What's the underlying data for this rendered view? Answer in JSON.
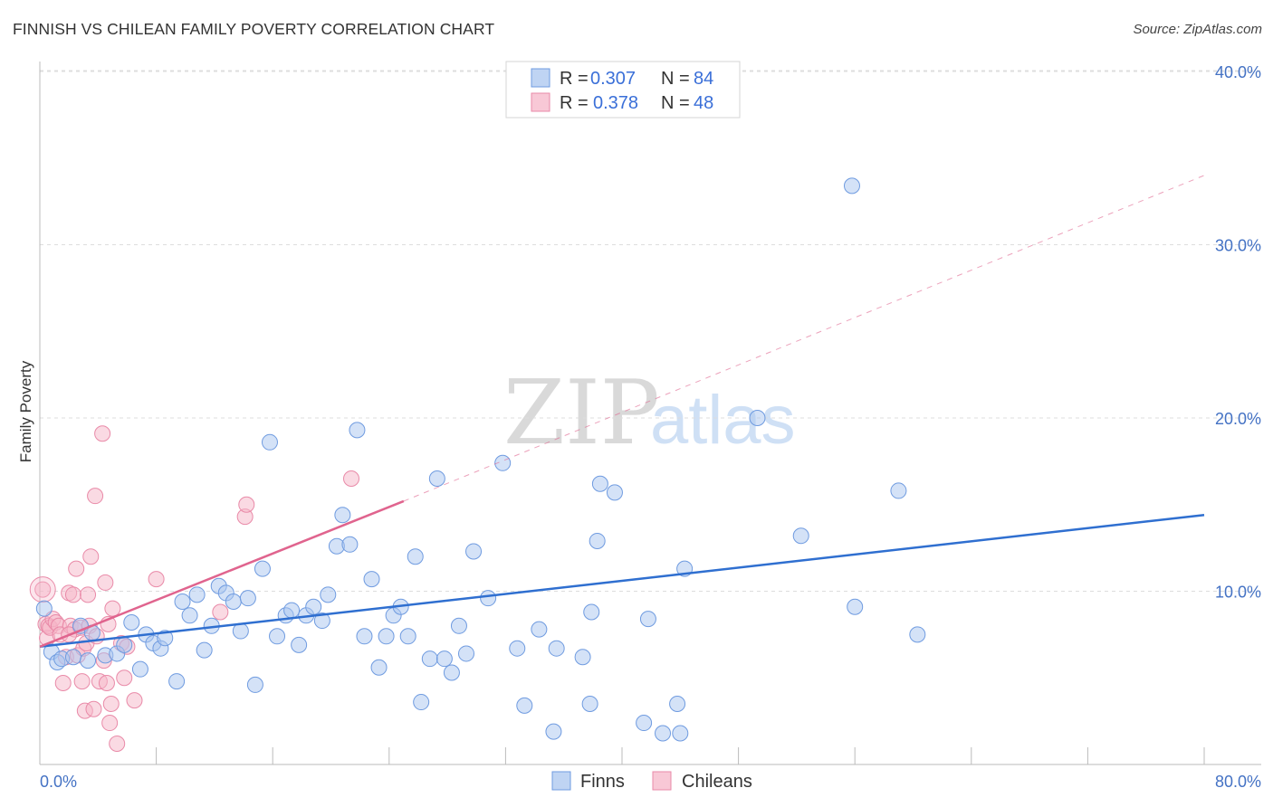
{
  "title": "FINNISH VS CHILEAN FAMILY POVERTY CORRELATION CHART",
  "source": "Source: ZipAtlas.com",
  "watermark": {
    "zip": "ZIP",
    "atlas": "atlas"
  },
  "colors": {
    "finns": "#a9c5ef",
    "finns_stroke": "#6f9be0",
    "finns_line": "#2f6fd0",
    "chileans": "#f5b5c8",
    "chileans_stroke": "#e98aa8",
    "chileans_line": "#e0648e",
    "tick_text": "#4472c4",
    "grid": "#dddddd"
  },
  "legend_top": {
    "rows": [
      {
        "r_label": "R =",
        "r_value": "0.307",
        "n_label": "N =",
        "n_value": "84"
      },
      {
        "r_label": "R =",
        "r_value": "0.378",
        "n_label": "N =",
        "n_value": "48"
      }
    ]
  },
  "chart_data": {
    "type": "scatter",
    "title": "FINNISH VS CHILEAN FAMILY POVERTY CORRELATION CHART",
    "xlabel": "",
    "ylabel": "Family Poverty",
    "xlim": [
      0,
      80
    ],
    "ylim": [
      0,
      42
    ],
    "x_tick_labels": [
      "0.0%",
      "80.0%"
    ],
    "y_ticks": [
      10,
      20,
      30,
      40
    ],
    "y_tick_labels": [
      "10.0%",
      "20.0%",
      "30.0%",
      "40.0%"
    ],
    "grid": "horizontal dashed",
    "legend_position": "bottom-center",
    "series": [
      {
        "name": "Finns",
        "r": 0.307,
        "n": 84,
        "trend": {
          "x0": 0,
          "y0": 6.8,
          "x1": 80,
          "y1": 14.4
        },
        "points": [
          [
            0.3,
            9.0
          ],
          [
            0.8,
            6.5
          ],
          [
            1.2,
            5.9
          ],
          [
            1.5,
            6.1
          ],
          [
            2.3,
            6.2
          ],
          [
            2.8,
            8.0
          ],
          [
            3.3,
            6.0
          ],
          [
            3.6,
            7.6
          ],
          [
            4.5,
            6.3
          ],
          [
            5.3,
            6.4
          ],
          [
            5.8,
            6.9
          ],
          [
            6.3,
            8.2
          ],
          [
            6.9,
            5.5
          ],
          [
            7.3,
            7.5
          ],
          [
            7.8,
            7.0
          ],
          [
            8.3,
            6.7
          ],
          [
            8.6,
            7.3
          ],
          [
            9.4,
            4.8
          ],
          [
            9.8,
            9.4
          ],
          [
            10.3,
            8.6
          ],
          [
            10.8,
            9.8
          ],
          [
            11.3,
            6.6
          ],
          [
            11.8,
            8.0
          ],
          [
            12.3,
            10.3
          ],
          [
            12.8,
            9.9
          ],
          [
            13.3,
            9.4
          ],
          [
            13.8,
            7.7
          ],
          [
            14.3,
            9.6
          ],
          [
            14.8,
            4.6
          ],
          [
            15.3,
            11.3
          ],
          [
            15.8,
            18.6
          ],
          [
            16.3,
            7.4
          ],
          [
            16.9,
            8.6
          ],
          [
            17.3,
            8.9
          ],
          [
            17.8,
            6.9
          ],
          [
            18.3,
            8.6
          ],
          [
            18.8,
            9.1
          ],
          [
            19.4,
            8.3
          ],
          [
            19.8,
            9.8
          ],
          [
            20.4,
            12.6
          ],
          [
            20.8,
            14.4
          ],
          [
            21.3,
            12.7
          ],
          [
            21.8,
            19.3
          ],
          [
            22.3,
            7.4
          ],
          [
            22.8,
            10.7
          ],
          [
            23.3,
            5.6
          ],
          [
            23.8,
            7.4
          ],
          [
            24.3,
            8.6
          ],
          [
            24.8,
            9.1
          ],
          [
            25.3,
            7.4
          ],
          [
            25.8,
            12.0
          ],
          [
            26.2,
            3.6
          ],
          [
            26.8,
            6.1
          ],
          [
            27.3,
            16.5
          ],
          [
            27.8,
            6.1
          ],
          [
            28.3,
            5.3
          ],
          [
            28.8,
            8.0
          ],
          [
            29.3,
            6.4
          ],
          [
            29.8,
            12.3
          ],
          [
            30.8,
            9.6
          ],
          [
            31.8,
            17.4
          ],
          [
            32.8,
            6.7
          ],
          [
            33.3,
            3.4
          ],
          [
            34.3,
            7.8
          ],
          [
            35.3,
            1.9
          ],
          [
            35.5,
            6.7
          ],
          [
            37.3,
            6.2
          ],
          [
            37.8,
            3.5
          ],
          [
            37.9,
            8.8
          ],
          [
            38.3,
            12.9
          ],
          [
            38.5,
            16.2
          ],
          [
            39.5,
            15.7
          ],
          [
            41.5,
            2.4
          ],
          [
            41.8,
            8.4
          ],
          [
            42.8,
            1.8
          ],
          [
            43.8,
            3.5
          ],
          [
            44.3,
            11.3
          ],
          [
            49.3,
            20.0
          ],
          [
            52.3,
            13.2
          ],
          [
            55.8,
            33.4
          ],
          [
            56.0,
            9.1
          ],
          [
            59.0,
            15.8
          ],
          [
            60.3,
            7.5
          ],
          [
            44.0,
            1.8
          ]
        ]
      },
      {
        "name": "Chileans",
        "r": 0.378,
        "n": 48,
        "trend": {
          "x0": 0,
          "y0": 6.8,
          "x1": 25,
          "y1": 15.2
        },
        "trend_dashed": {
          "x0": 25,
          "y0": 15.2,
          "x1": 80,
          "y1": 34.0
        },
        "points": [
          [
            0.2,
            10.1
          ],
          [
            0.4,
            8.1
          ],
          [
            0.5,
            7.3
          ],
          [
            0.6,
            8.0
          ],
          [
            0.7,
            7.9
          ],
          [
            0.9,
            8.4
          ],
          [
            1.1,
            8.2
          ],
          [
            1.3,
            8.0
          ],
          [
            1.4,
            7.5
          ],
          [
            1.6,
            4.7
          ],
          [
            1.8,
            6.2
          ],
          [
            2.0,
            9.9
          ],
          [
            2.1,
            8.0
          ],
          [
            2.3,
            9.8
          ],
          [
            2.4,
            7.8
          ],
          [
            2.5,
            11.3
          ],
          [
            2.6,
            6.3
          ],
          [
            2.8,
            7.9
          ],
          [
            2.9,
            4.8
          ],
          [
            3.0,
            6.7
          ],
          [
            3.1,
            3.1
          ],
          [
            3.2,
            7.0
          ],
          [
            3.3,
            9.8
          ],
          [
            3.4,
            8.0
          ],
          [
            3.5,
            12.0
          ],
          [
            3.7,
            3.2
          ],
          [
            3.8,
            15.5
          ],
          [
            3.9,
            7.4
          ],
          [
            4.1,
            4.8
          ],
          [
            4.3,
            19.1
          ],
          [
            4.4,
            6.0
          ],
          [
            4.5,
            10.5
          ],
          [
            4.6,
            4.7
          ],
          [
            4.7,
            8.1
          ],
          [
            4.8,
            2.4
          ],
          [
            4.9,
            3.5
          ],
          [
            5.0,
            9.0
          ],
          [
            5.3,
            1.2
          ],
          [
            5.6,
            7.0
          ],
          [
            5.8,
            5.0
          ],
          [
            6.5,
            3.7
          ],
          [
            8.0,
            10.7
          ],
          [
            12.4,
            8.8
          ],
          [
            14.1,
            14.3
          ],
          [
            14.2,
            15.0
          ],
          [
            21.4,
            16.5
          ],
          [
            6.0,
            6.8
          ],
          [
            2.0,
            7.5
          ]
        ]
      }
    ]
  }
}
